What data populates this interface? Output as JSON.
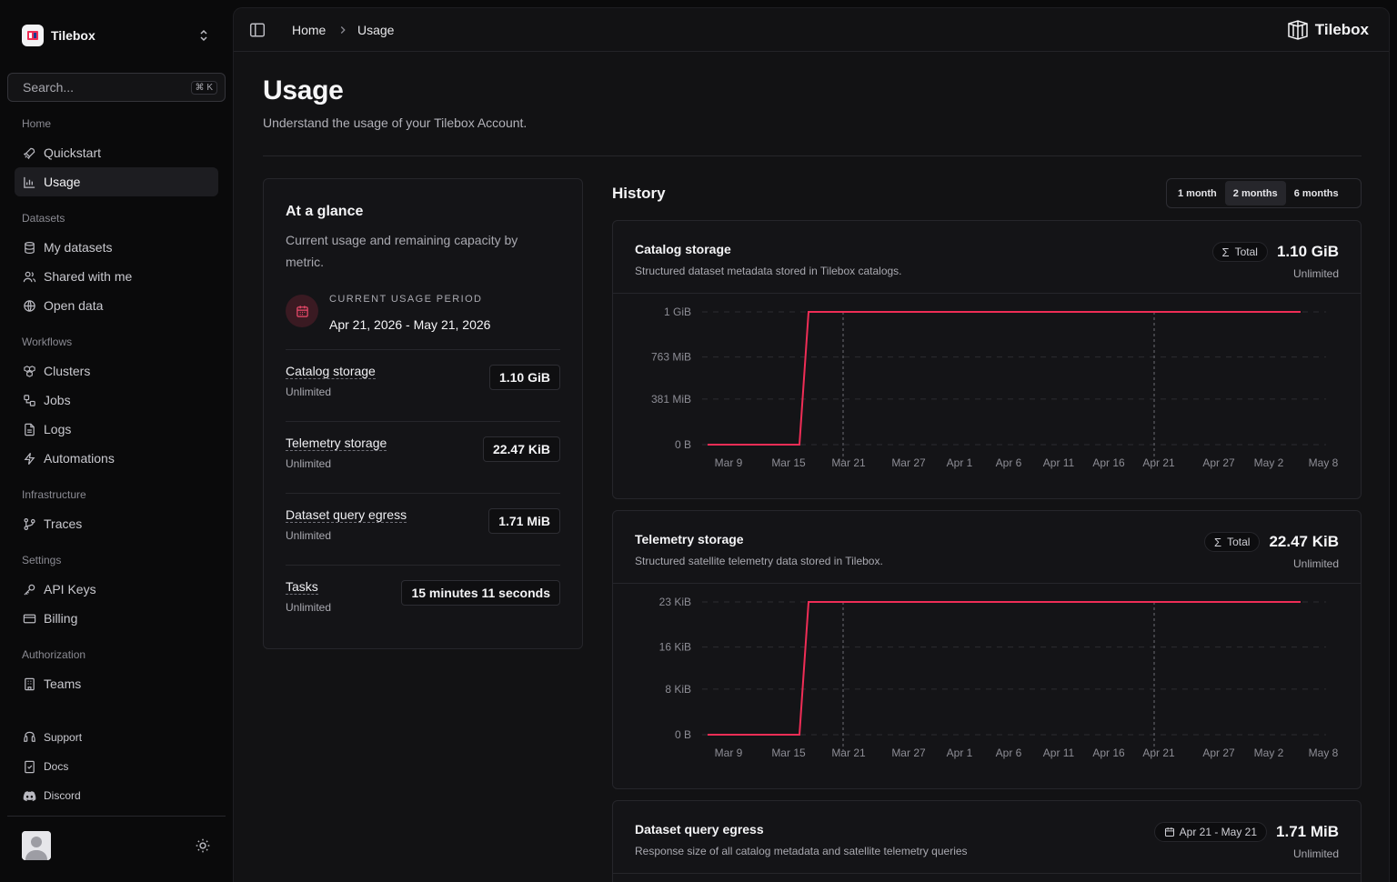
{
  "app": {
    "name": "Tilebox",
    "logo_text": "Tilebox"
  },
  "search": {
    "placeholder": "Search...",
    "shortcut": "⌘ K"
  },
  "sidebar": {
    "groups": [
      {
        "label": "Home",
        "items": [
          {
            "label": "Quickstart",
            "icon": "rocket-icon"
          },
          {
            "label": "Usage",
            "icon": "bar-chart-icon",
            "active": true
          }
        ]
      },
      {
        "label": "Datasets",
        "items": [
          {
            "label": "My datasets",
            "icon": "database-icon"
          },
          {
            "label": "Shared with me",
            "icon": "users-icon"
          },
          {
            "label": "Open data",
            "icon": "globe-icon"
          }
        ]
      },
      {
        "label": "Workflows",
        "items": [
          {
            "label": "Clusters",
            "icon": "boxes-icon"
          },
          {
            "label": "Jobs",
            "icon": "workflow-icon"
          },
          {
            "label": "Logs",
            "icon": "file-text-icon"
          },
          {
            "label": "Automations",
            "icon": "zap-icon"
          }
        ]
      },
      {
        "label": "Infrastructure",
        "items": [
          {
            "label": "Traces",
            "icon": "git-branch-icon"
          }
        ]
      },
      {
        "label": "Settings",
        "items": [
          {
            "label": "API Keys",
            "icon": "key-icon"
          },
          {
            "label": "Billing",
            "icon": "credit-card-icon"
          }
        ]
      },
      {
        "label": "Authorization",
        "items": [
          {
            "label": "Teams",
            "icon": "building-icon"
          }
        ]
      }
    ],
    "footer": [
      {
        "label": "Support",
        "icon": "life-buoy-icon"
      },
      {
        "label": "Docs",
        "icon": "book-icon"
      },
      {
        "label": "Discord",
        "icon": "discord-icon"
      }
    ]
  },
  "breadcrumb": {
    "home": "Home",
    "current": "Usage"
  },
  "page": {
    "title": "Usage",
    "subtitle": "Understand the usage of your Tilebox Account."
  },
  "glance": {
    "title": "At a glance",
    "description": "Current usage and remaining capacity by metric.",
    "period_label": "CURRENT USAGE PERIOD",
    "period_value": "Apr 21, 2026 - May 21, 2026",
    "metrics": [
      {
        "name": "Catalog storage",
        "limit": "Unlimited",
        "value": "1.10 GiB"
      },
      {
        "name": "Telemetry storage",
        "limit": "Unlimited",
        "value": "22.47 KiB"
      },
      {
        "name": "Dataset query egress",
        "limit": "Unlimited",
        "value": "1.71 MiB"
      },
      {
        "name": "Tasks",
        "limit": "Unlimited",
        "value": "15 minutes 11 seconds"
      }
    ]
  },
  "history": {
    "title": "History",
    "ranges": [
      {
        "label": "1 month"
      },
      {
        "label": "2 months",
        "active": true
      },
      {
        "label": "6 months"
      }
    ],
    "cards": [
      {
        "title": "Catalog storage",
        "description": "Structured dataset metadata stored in Tilebox catalogs.",
        "chip": "Total",
        "total": "1.10 GiB",
        "limit": "Unlimited"
      },
      {
        "title": "Telemetry storage",
        "description": "Structured satellite telemetry data stored in Tilebox.",
        "chip": "Total",
        "total": "22.47 KiB",
        "limit": "Unlimited"
      },
      {
        "title": "Dataset query egress",
        "description": "Response size of all catalog metadata and satellite telemetry queries",
        "chip": "Apr 21 - May 21",
        "total": "1.71 MiB",
        "limit": "Unlimited"
      }
    ]
  },
  "colors": {
    "accent": "#ef2d56",
    "background": "#0a0a0b",
    "panel": "#121214"
  },
  "chart_data": [
    {
      "type": "line",
      "x": [
        "Mar 9",
        "Mar 15",
        "Mar 21",
        "Mar 27",
        "Apr 1",
        "Apr 6",
        "Apr 11",
        "Apr 16",
        "Apr 21",
        "Apr 27",
        "May 2",
        "May 8"
      ],
      "y_ticks": [
        "0 B",
        "381 MiB",
        "763 MiB",
        "1 GiB"
      ],
      "ylim": [
        0,
        1.1
      ],
      "series": [
        {
          "values": [
            0,
            0,
            1.1,
            1.1,
            1.1,
            1.1,
            1.1,
            1.1,
            1.1,
            1.1,
            1.1,
            1.1
          ]
        }
      ],
      "markers": [
        "Mar 21",
        "Apr 21"
      ],
      "grid": true
    },
    {
      "type": "line",
      "x": [
        "Mar 9",
        "Mar 15",
        "Mar 21",
        "Mar 27",
        "Apr 1",
        "Apr 6",
        "Apr 11",
        "Apr 16",
        "Apr 21",
        "Apr 27",
        "May 2",
        "May 8"
      ],
      "y_ticks": [
        "0 B",
        "8 KiB",
        "16 KiB",
        "23 KiB"
      ],
      "ylim": [
        0,
        22.47
      ],
      "series": [
        {
          "values": [
            0,
            0,
            22.47,
            22.47,
            22.47,
            22.47,
            22.47,
            22.47,
            22.47,
            22.47,
            22.47,
            22.47
          ]
        }
      ],
      "markers": [
        "Mar 21",
        "Apr 21"
      ],
      "grid": true
    }
  ]
}
